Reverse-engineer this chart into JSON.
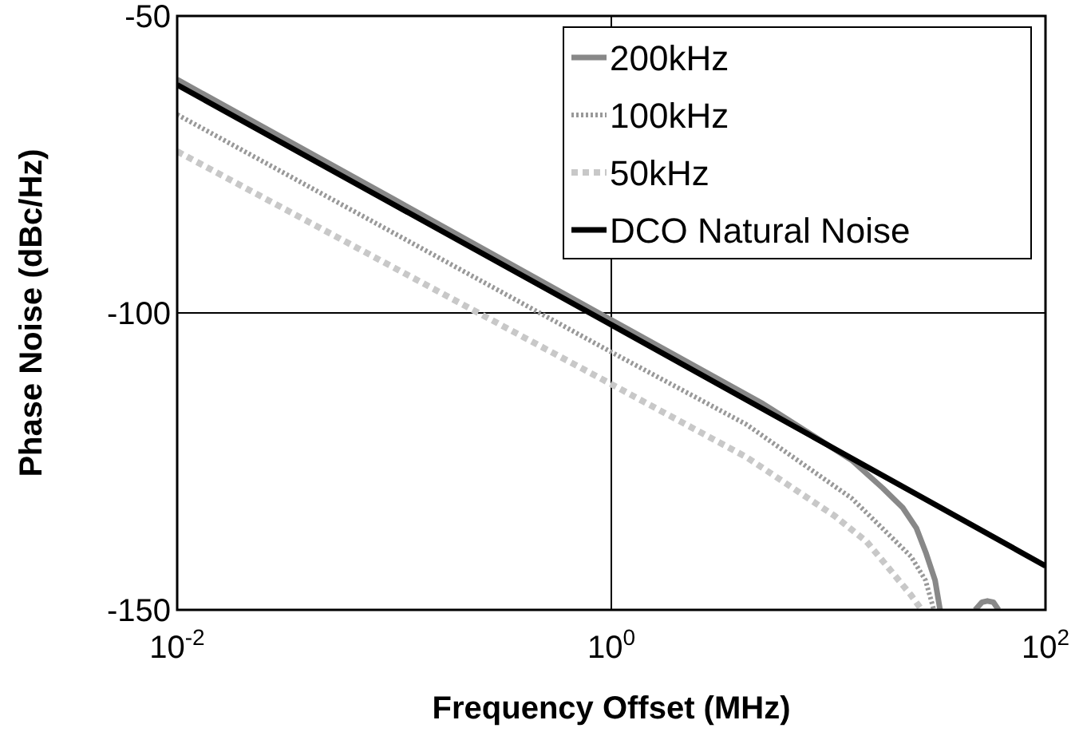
{
  "chart_data": {
    "type": "line",
    "xlabel": "Frequency Offset (MHz)",
    "ylabel": "Phase Noise (dBc/Hz)",
    "log": "x",
    "xlim": [
      0.01,
      100
    ],
    "xticks": [
      {
        "value": 0.01,
        "label": "10$^{-2}$"
      },
      {
        "value": 1,
        "label": "10$^{0}$"
      },
      {
        "value": 100,
        "label": "10$^{2}$"
      }
    ],
    "ylim": [
      -150,
      -50
    ],
    "yticks": [
      -150,
      -100,
      -50
    ],
    "grid": true,
    "legend": "top right",
    "series": [
      {
        "name": "200kHz",
        "color": "#888888",
        "line_style": "solid",
        "x": [
          0.01,
          0.1,
          1,
          5,
          12.8,
          17.8,
          22,
          25.4,
          28.2,
          31,
          32.7,
          40,
          47.4,
          51,
          54,
          57.5,
          60.8
        ],
        "values": [
          -60.7,
          -80.9,
          -101.2,
          -115.3,
          -124.8,
          -129.5,
          -132.8,
          -136.2,
          -140.5,
          -145,
          -150,
          null,
          -150,
          -148.7,
          -148.5,
          -148.7,
          -150
        ]
      },
      {
        "name": "100kHz",
        "color": "#999999",
        "line_style": "dotted",
        "x": [
          0.01,
          0.1,
          1,
          4.2,
          12.8,
          18,
          24,
          28,
          30.6
        ],
        "values": [
          -66.6,
          -86.6,
          -106.6,
          -118.8,
          -131.2,
          -136.5,
          -141,
          -145,
          -150
        ]
      },
      {
        "name": "50kHz",
        "color": "#c8c8c8",
        "line_style": "dashed",
        "x": [
          0.01,
          0.1,
          1,
          4.2,
          10.7,
          15,
          20,
          24,
          26.9
        ],
        "values": [
          -72.8,
          -92.4,
          -112,
          -124.3,
          -134.2,
          -138.5,
          -144,
          -147.5,
          -150
        ]
      },
      {
        "name": "DCO Natural Noise",
        "color": "#000000",
        "line_style": "solid",
        "x": [
          0.01,
          1,
          100
        ],
        "values": [
          -61.6,
          -102,
          -142.6
        ]
      }
    ]
  }
}
